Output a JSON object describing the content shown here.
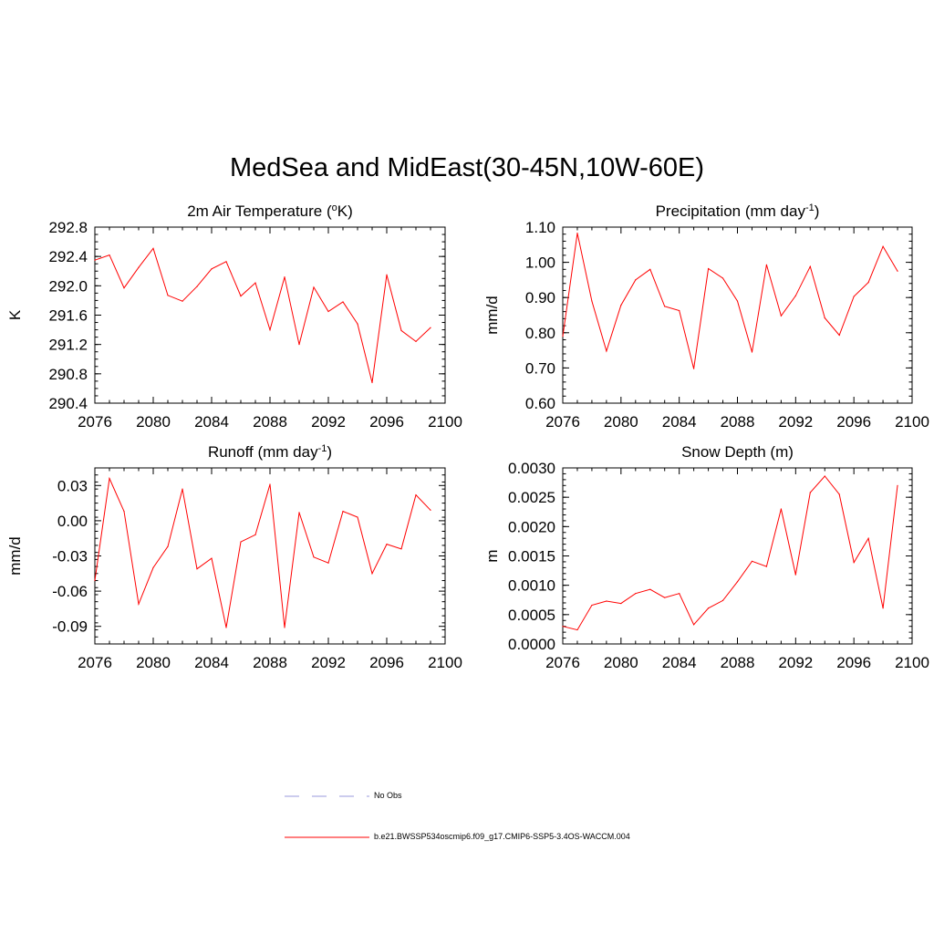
{
  "title": "MedSea and MidEast(30-45N,10W-60E)",
  "colors": {
    "series": "#ff0000",
    "noobs": "#9999dd",
    "axis": "#000000"
  },
  "legend": {
    "noobs_label": "No Obs",
    "case_label": "b.e21.BWSSP534oscmip6.f09_g17.CMIP6-SSP5-3.4OS-WACCM.004"
  },
  "chart_data": [
    {
      "type": "line",
      "title": "2m Air Temperature (",
      "title_sup": "o",
      "title_after": "K)",
      "ylabel": "K",
      "xlim": [
        2076,
        2100
      ],
      "ylim": [
        290.4,
        292.8
      ],
      "xticks": [
        2076,
        2080,
        2084,
        2088,
        2092,
        2096,
        2100
      ],
      "xtick_labels": [
        "2076",
        "2080",
        "2084",
        "2088",
        "2092",
        "2096",
        "2100"
      ],
      "yticks": [
        290.4,
        290.8,
        291.2,
        291.6,
        292.0,
        292.4,
        292.8
      ],
      "ytick_labels": [
        "290.4",
        "290.8",
        "291.2",
        "291.6",
        "292.0",
        "292.4",
        "292.8"
      ],
      "y_minor_step": 0.1,
      "x": [
        2076,
        2077,
        2078,
        2079,
        2080,
        2081,
        2082,
        2083,
        2084,
        2085,
        2086,
        2087,
        2088,
        2089,
        2090,
        2091,
        2092,
        2093,
        2094,
        2095,
        2096,
        2097,
        2098,
        2099
      ],
      "values": [
        292.35,
        292.42,
        291.97,
        292.25,
        292.51,
        291.87,
        291.79,
        291.99,
        292.23,
        292.33,
        291.86,
        292.04,
        291.4,
        292.12,
        291.2,
        291.98,
        291.65,
        291.78,
        291.48,
        290.68,
        292.15,
        291.39,
        291.24,
        291.43
      ]
    },
    {
      "type": "line",
      "title": "Precipitation (mm day",
      "title_sup": "-1",
      "title_after": ")",
      "ylabel": "mm/d",
      "xlim": [
        2076,
        2100
      ],
      "ylim": [
        0.6,
        1.1
      ],
      "xticks": [
        2076,
        2080,
        2084,
        2088,
        2092,
        2096,
        2100
      ],
      "xtick_labels": [
        "2076",
        "2080",
        "2084",
        "2088",
        "2092",
        "2096",
        "2100"
      ],
      "yticks": [
        0.6,
        0.7,
        0.8,
        0.9,
        1.0,
        1.1
      ],
      "ytick_labels": [
        "0.60",
        "0.70",
        "0.80",
        "0.90",
        "1.00",
        "1.10"
      ],
      "y_minor_step": 0.02,
      "x": [
        2076,
        2077,
        2078,
        2079,
        2080,
        2081,
        2082,
        2083,
        2084,
        2085,
        2086,
        2087,
        2088,
        2089,
        2090,
        2091,
        2092,
        2093,
        2094,
        2095,
        2096,
        2097,
        2098,
        2099
      ],
      "values": [
        0.79,
        1.083,
        0.89,
        0.748,
        0.878,
        0.95,
        0.98,
        0.875,
        0.863,
        0.698,
        0.982,
        0.955,
        0.89,
        0.745,
        0.993,
        0.848,
        0.905,
        0.988,
        0.842,
        0.793,
        0.903,
        0.943,
        1.045,
        0.975
      ]
    },
    {
      "type": "line",
      "title": "Runoff (mm day",
      "title_sup": "-1",
      "title_after": ")",
      "ylabel": "mm/d",
      "xlim": [
        2076,
        2100
      ],
      "ylim": [
        -0.105,
        0.045
      ],
      "xticks": [
        2076,
        2080,
        2084,
        2088,
        2092,
        2096,
        2100
      ],
      "xtick_labels": [
        "2076",
        "2080",
        "2084",
        "2088",
        "2092",
        "2096",
        "2100"
      ],
      "yticks": [
        -0.09,
        -0.06,
        -0.03,
        0.0,
        0.03
      ],
      "ytick_labels": [
        "-0.09",
        "-0.06",
        "-0.03",
        "0.00",
        "0.03"
      ],
      "y_minor_step": 0.006,
      "x": [
        2076,
        2077,
        2078,
        2079,
        2080,
        2081,
        2082,
        2083,
        2084,
        2085,
        2086,
        2087,
        2088,
        2089,
        2090,
        2091,
        2092,
        2093,
        2094,
        2095,
        2096,
        2097,
        2098,
        2099
      ],
      "values": [
        -0.051,
        0.036,
        0.008,
        -0.071,
        -0.04,
        -0.022,
        0.027,
        -0.041,
        -0.032,
        -0.091,
        -0.018,
        -0.012,
        0.031,
        -0.091,
        0.007,
        -0.031,
        -0.036,
        0.008,
        0.003,
        -0.045,
        -0.02,
        -0.024,
        0.022,
        0.009
      ]
    },
    {
      "type": "line",
      "title": "Snow Depth (m)",
      "title_sup": "",
      "title_after": "",
      "ylabel": "m",
      "xlim": [
        2076,
        2100
      ],
      "ylim": [
        0.0,
        0.003
      ],
      "xticks": [
        2076,
        2080,
        2084,
        2088,
        2092,
        2096,
        2100
      ],
      "xtick_labels": [
        "2076",
        "2080",
        "2084",
        "2088",
        "2092",
        "2096",
        "2100"
      ],
      "yticks": [
        0.0,
        0.0005,
        0.001,
        0.0015,
        0.002,
        0.0025,
        0.003
      ],
      "ytick_labels": [
        "0.0000",
        "0.0005",
        "0.0010",
        "0.0015",
        "0.0020",
        "0.0025",
        "0.0030"
      ],
      "y_minor_step": 0.0001,
      "x": [
        2076,
        2077,
        2078,
        2079,
        2080,
        2081,
        2082,
        2083,
        2084,
        2085,
        2086,
        2087,
        2088,
        2089,
        2090,
        2091,
        2092,
        2093,
        2094,
        2095,
        2096,
        2097,
        2098,
        2099
      ],
      "values": [
        0.0003,
        0.00024,
        0.00066,
        0.00073,
        0.00069,
        0.00086,
        0.00093,
        0.00079,
        0.00086,
        0.00033,
        0.00061,
        0.00074,
        0.00106,
        0.00141,
        0.00132,
        0.0023,
        0.00118,
        0.00258,
        0.00286,
        0.00255,
        0.00139,
        0.0018,
        0.00061,
        0.0027
      ]
    }
  ]
}
